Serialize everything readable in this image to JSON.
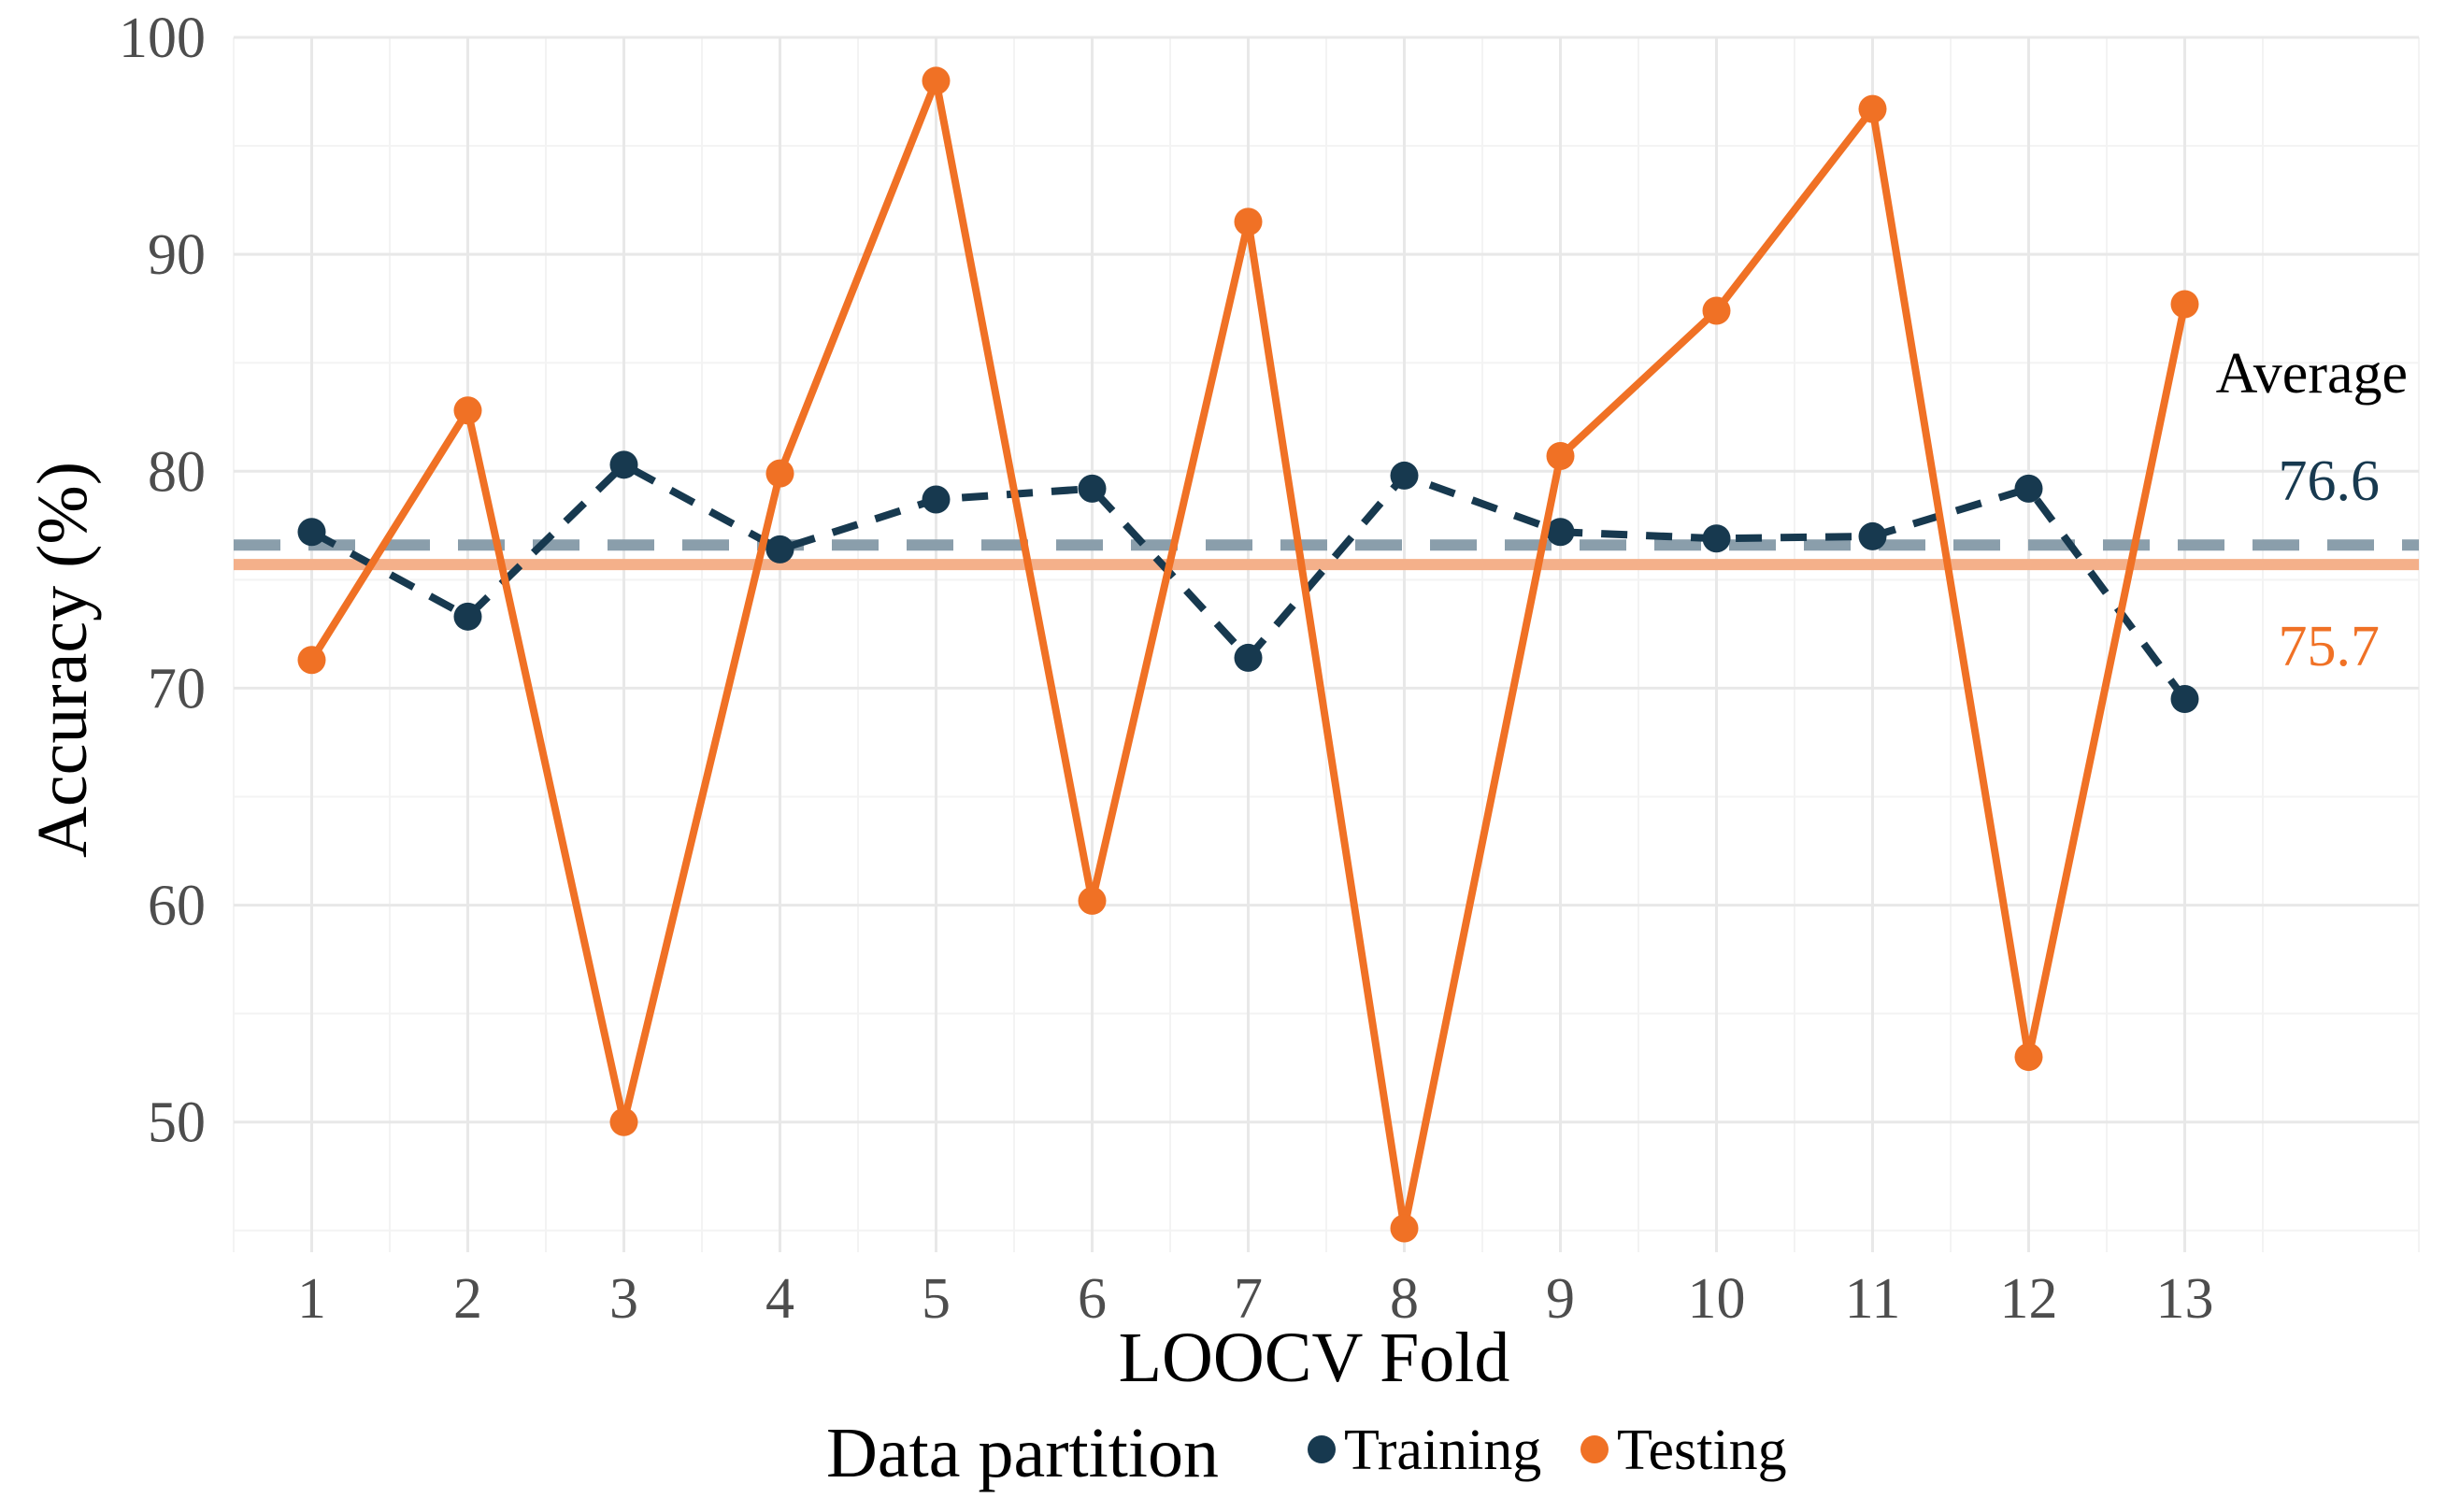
{
  "chart_data": {
    "type": "line",
    "title": "",
    "xlabel": "LOOCV Fold",
    "ylabel": "Accuracy (%)",
    "x": [
      1,
      2,
      3,
      4,
      5,
      6,
      7,
      8,
      9,
      10,
      11,
      12,
      13
    ],
    "x_tick_labels": [
      "1",
      "2",
      "3",
      "4",
      "5",
      "6",
      "7",
      "8",
      "9",
      "10",
      "11",
      "12",
      "13"
    ],
    "y_ticks": [
      50,
      60,
      70,
      80,
      90,
      100
    ],
    "y_tick_labels": [
      "50",
      "60",
      "70",
      "80",
      "90",
      "100"
    ],
    "xlim": [
      0.5,
      14.5
    ],
    "ylim": [
      44,
      100
    ],
    "grid": true,
    "legend": {
      "title": "Data partition",
      "position": "bottom",
      "entries": [
        "Training",
        "Testing"
      ]
    },
    "series": [
      {
        "name": "Training",
        "color": "#17394f",
        "line_style": "dashed",
        "values": [
          77.2,
          73.3,
          80.3,
          76.4,
          78.7,
          79.2,
          71.4,
          79.8,
          77.2,
          76.9,
          77.0,
          79.2,
          69.5
        ]
      },
      {
        "name": "Testing",
        "color": "#f07125",
        "line_style": "solid",
        "values": [
          71.3,
          82.8,
          50.0,
          79.9,
          98.0,
          60.2,
          91.5,
          45.1,
          80.7,
          87.4,
          96.7,
          53.0,
          87.7
        ]
      }
    ],
    "averages": {
      "title": "Average",
      "lines": [
        {
          "series": "Training",
          "value": 76.6,
          "label": "76.6",
          "color": "#17394f",
          "line_color": "#8a9eab",
          "line_style": "dashed"
        },
        {
          "series": "Testing",
          "value": 75.7,
          "label": "75.7",
          "color": "#f07125",
          "line_color": "#f4b08a",
          "line_style": "solid"
        }
      ]
    }
  }
}
